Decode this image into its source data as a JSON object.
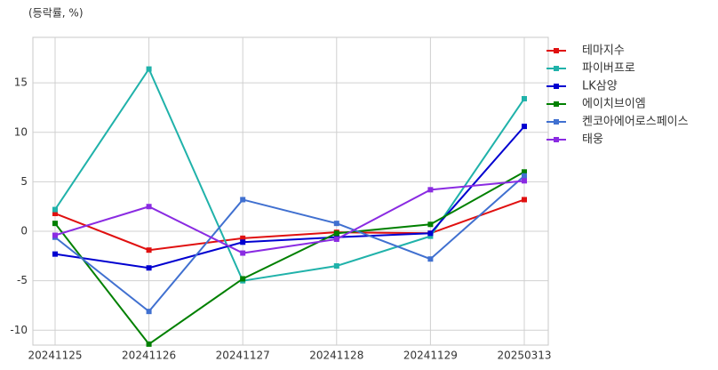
{
  "chart_data": {
    "type": "line",
    "subtitle": "(등락률, %)",
    "categories": [
      "20241125",
      "20241126",
      "20241127",
      "20241128",
      "20241129",
      "20250313"
    ],
    "ylim": [
      -11.5,
      19.6
    ],
    "yticks": [
      -10,
      -5,
      0,
      5,
      10,
      15
    ],
    "grid": true,
    "legend": "right",
    "series": [
      {
        "name": "테마지수",
        "color": "#e01010",
        "values": [
          1.8,
          -1.9,
          -0.7,
          -0.1,
          -0.2,
          3.2
        ]
      },
      {
        "name": "파이버프로",
        "color": "#20b2aa",
        "values": [
          2.2,
          16.4,
          -5.0,
          -3.5,
          -0.5,
          13.4
        ]
      },
      {
        "name": "LK삼양",
        "color": "#0000d0",
        "values": [
          -2.3,
          -3.7,
          -1.1,
          -0.6,
          -0.2,
          10.6
        ]
      },
      {
        "name": "에이치브이엠",
        "color": "#008000",
        "values": [
          0.8,
          -11.4,
          -4.8,
          -0.2,
          0.7,
          6.0
        ]
      },
      {
        "name": "켄코아에어로스페이스",
        "color": "#4070d0",
        "values": [
          -0.6,
          -8.1,
          3.2,
          0.8,
          -2.8,
          5.6
        ]
      },
      {
        "name": "태웅",
        "color": "#8a2be2",
        "values": [
          -0.4,
          2.5,
          -2.2,
          -0.8,
          4.2,
          5.1
        ]
      }
    ]
  }
}
